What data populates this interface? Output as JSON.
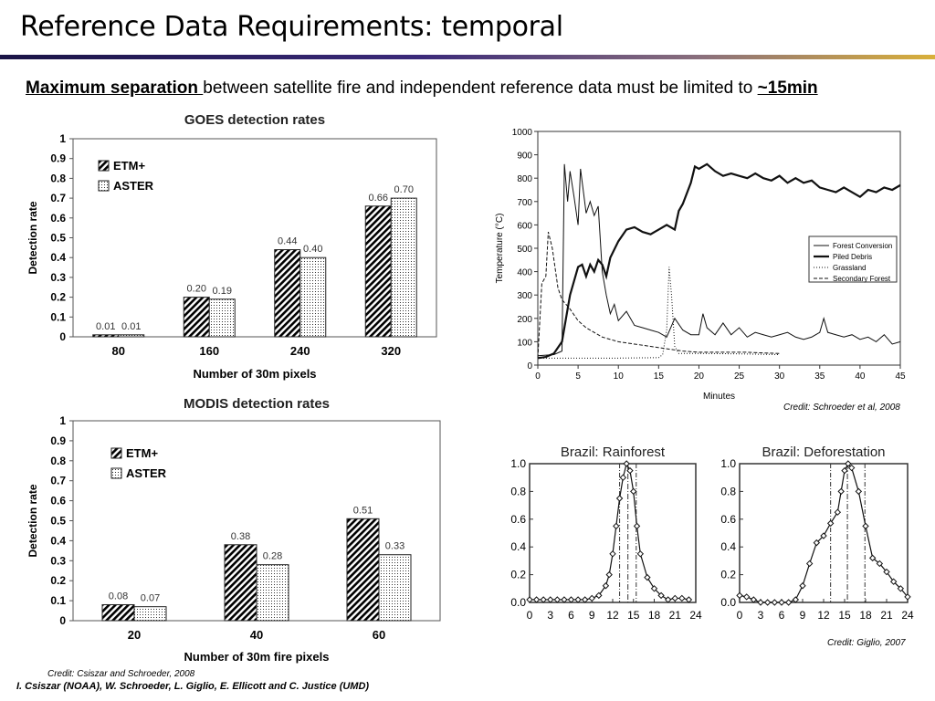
{
  "slide": {
    "title": "Reference Data Requirements: temporal",
    "subtitle_em": "Maximum separation ",
    "subtitle_mid": "between satellite fire and independent reference data must be limited to ",
    "subtitle_end": "~15min",
    "credit_schroeder": "Credit: Schroeder et al, 2008",
    "credit_giglio": "Credit: Giglio, 2007",
    "credit_csiszar": "Credit: Csiszar and Schroeder, 2008",
    "authors": "I. Csiszar (NOAA), W. Schroeder, L. Giglio, E. Ellicott and C. Justice (UMD)"
  },
  "chart_data": [
    {
      "id": "goes",
      "type": "bar",
      "title": "GOES detection rates",
      "xlabel": "Number of 30m pixels",
      "ylabel": "Detection rate",
      "ylim": [
        0,
        1
      ],
      "yticks": [
        "0",
        "0.1",
        "0.2",
        "0.3",
        "0.4",
        "0.5",
        "0.6",
        "0.7",
        "0.8",
        "0.9",
        "1"
      ],
      "categories": [
        "80",
        "160",
        "240",
        "320"
      ],
      "legend_position": "top-left",
      "series": [
        {
          "name": "ETM+",
          "values": [
            0.01,
            0.2,
            0.44,
            0.66
          ],
          "labels": [
            "0.01",
            "0.20",
            "0.44",
            "0.66"
          ]
        },
        {
          "name": "ASTER",
          "values": [
            0.01,
            0.19,
            0.4,
            0.7
          ],
          "labels": [
            "0.01",
            "0.19",
            "0.40",
            "0.70"
          ]
        }
      ]
    },
    {
      "id": "modis",
      "type": "bar",
      "title": "MODIS detection rates",
      "xlabel": "Number of 30m fire pixels",
      "ylabel": "Detection rate",
      "ylim": [
        0,
        1
      ],
      "yticks": [
        "0",
        "0.1",
        "0.2",
        "0.3",
        "0.4",
        "0.5",
        "0.6",
        "0.7",
        "0.8",
        "0.9",
        "1"
      ],
      "categories": [
        "20",
        "40",
        "60"
      ],
      "legend_position": "top-left",
      "series": [
        {
          "name": "ETM+",
          "values": [
            0.08,
            0.38,
            0.51
          ],
          "labels": [
            "0.08",
            "0.38",
            "0.51"
          ]
        },
        {
          "name": "ASTER",
          "values": [
            0.07,
            0.28,
            0.33
          ],
          "labels": [
            "0.07",
            "0.28",
            "0.33"
          ]
        }
      ]
    },
    {
      "id": "temperature",
      "type": "line",
      "xlabel": "Minutes",
      "ylabel": "Temperature (°C)",
      "xlim": [
        0,
        45
      ],
      "ylim": [
        0,
        1000
      ],
      "xticks": [
        "0",
        "5",
        "10",
        "15",
        "20",
        "25",
        "30",
        "35",
        "40",
        "45"
      ],
      "yticks": [
        "0",
        "100",
        "200",
        "300",
        "400",
        "500",
        "600",
        "700",
        "800",
        "900",
        "1000"
      ],
      "legend_position": "right",
      "series": [
        {
          "name": "Forest Conversion",
          "style": "thin",
          "x": [
            0,
            2,
            3,
            3.3,
            3.7,
            4,
            4.5,
            5,
            5.3,
            6,
            6.5,
            7,
            7.5,
            8,
            8.5,
            9,
            9.5,
            10,
            11,
            12,
            13,
            14,
            15,
            16,
            17,
            18,
            19,
            20,
            20.5,
            21,
            22,
            23,
            24,
            25,
            26,
            27,
            28,
            29,
            30,
            31,
            32,
            33,
            34,
            35,
            35.5,
            36,
            37,
            38,
            39,
            40,
            41,
            42,
            43,
            44,
            45
          ],
          "y": [
            40,
            45,
            60,
            860,
            700,
            830,
            720,
            600,
            840,
            650,
            700,
            640,
            680,
            400,
            300,
            220,
            260,
            190,
            230,
            170,
            160,
            150,
            140,
            120,
            200,
            150,
            130,
            130,
            220,
            160,
            130,
            180,
            130,
            160,
            120,
            140,
            130,
            120,
            130,
            140,
            120,
            110,
            120,
            140,
            200,
            140,
            130,
            120,
            130,
            110,
            120,
            100,
            130,
            90,
            100
          ]
        },
        {
          "name": "Piled Debris",
          "style": "thick",
          "x": [
            0,
            1,
            2,
            3,
            3.5,
            4,
            5,
            5.5,
            6,
            6.5,
            7,
            7.5,
            8,
            8.5,
            9,
            10,
            11,
            12,
            13,
            14,
            15,
            16,
            17,
            17.5,
            18,
            19,
            19.5,
            20,
            21,
            22,
            23,
            24,
            25,
            26,
            27,
            28,
            29,
            30,
            31,
            32,
            33,
            34,
            35,
            36,
            37,
            38,
            39,
            40,
            41,
            42,
            43,
            44,
            45
          ],
          "y": [
            30,
            35,
            50,
            100,
            200,
            300,
            420,
            430,
            380,
            430,
            400,
            450,
            430,
            380,
            460,
            530,
            580,
            590,
            570,
            560,
            580,
            600,
            580,
            660,
            690,
            780,
            850,
            840,
            860,
            830,
            810,
            820,
            810,
            800,
            820,
            800,
            790,
            810,
            780,
            800,
            780,
            790,
            760,
            750,
            740,
            760,
            740,
            720,
            750,
            740,
            760,
            750,
            770
          ]
        },
        {
          "name": "Grassland",
          "style": "dotted",
          "x": [
            0,
            5,
            10,
            15,
            15.5,
            16,
            16.3,
            16.6,
            17,
            17.5,
            18,
            20,
            25,
            30
          ],
          "y": [
            30,
            30,
            30,
            32,
            45,
            150,
            420,
            300,
            80,
            50,
            50,
            50,
            48,
            45
          ]
        },
        {
          "name": "Secondary Forest",
          "style": "dashed",
          "x": [
            0,
            0.5,
            1,
            1.3,
            1.8,
            2.5,
            3,
            4,
            5,
            6,
            7,
            8,
            9,
            10,
            12,
            14,
            16,
            18,
            20,
            22,
            24,
            26,
            28,
            30
          ],
          "y": [
            30,
            350,
            380,
            570,
            500,
            330,
            280,
            240,
            190,
            160,
            140,
            120,
            110,
            100,
            90,
            80,
            70,
            60,
            55,
            55,
            55,
            55,
            52,
            50
          ]
        }
      ]
    },
    {
      "id": "rainforest",
      "type": "line",
      "title": "Brazil: Rainforest",
      "xlim": [
        0,
        24
      ],
      "ylim": [
        0,
        1.0
      ],
      "xticks": [
        "0",
        "3",
        "6",
        "9",
        "12",
        "15",
        "18",
        "21",
        "24"
      ],
      "yticks": [
        "0.0",
        "0.2",
        "0.4",
        "0.6",
        "0.8",
        "1.0"
      ],
      "vlines": [
        13,
        14.2,
        15.4
      ],
      "series": [
        {
          "x": [
            0,
            1,
            2,
            3,
            4,
            5,
            6,
            7,
            8,
            9,
            10,
            11,
            11.5,
            12,
            12.5,
            13,
            13.5,
            14,
            14.5,
            15,
            15.5,
            16,
            17,
            18,
            19,
            20,
            21,
            22,
            23
          ],
          "y": [
            0.02,
            0.02,
            0.02,
            0.02,
            0.02,
            0.02,
            0.02,
            0.02,
            0.02,
            0.03,
            0.05,
            0.12,
            0.2,
            0.35,
            0.55,
            0.75,
            0.9,
            1.0,
            0.95,
            0.8,
            0.55,
            0.35,
            0.18,
            0.1,
            0.05,
            0.02,
            0.03,
            0.03,
            0.02
          ]
        }
      ]
    },
    {
      "id": "deforestation",
      "type": "line",
      "title": "Brazil: Deforestation",
      "xlim": [
        0,
        24
      ],
      "ylim": [
        0,
        1.0
      ],
      "xticks": [
        "0",
        "3",
        "6",
        "9",
        "12",
        "15",
        "18",
        "21",
        "24"
      ],
      "yticks": [
        "0.0",
        "0.2",
        "0.4",
        "0.6",
        "0.8",
        "1.0"
      ],
      "vlines": [
        13,
        15.4,
        17.9
      ],
      "series": [
        {
          "x": [
            0,
            1,
            2,
            3,
            4,
            5,
            6,
            7,
            8,
            9,
            10,
            11,
            12,
            13,
            14,
            14.5,
            15,
            15.5,
            16,
            17,
            18,
            19,
            20,
            21,
            22,
            23,
            24
          ],
          "y": [
            0.05,
            0.04,
            0.02,
            0.0,
            0.0,
            0.0,
            0.0,
            0.0,
            0.02,
            0.12,
            0.28,
            0.43,
            0.48,
            0.57,
            0.65,
            0.8,
            0.95,
            1.0,
            0.97,
            0.8,
            0.55,
            0.32,
            0.28,
            0.22,
            0.15,
            0.1,
            0.04
          ]
        }
      ]
    }
  ]
}
